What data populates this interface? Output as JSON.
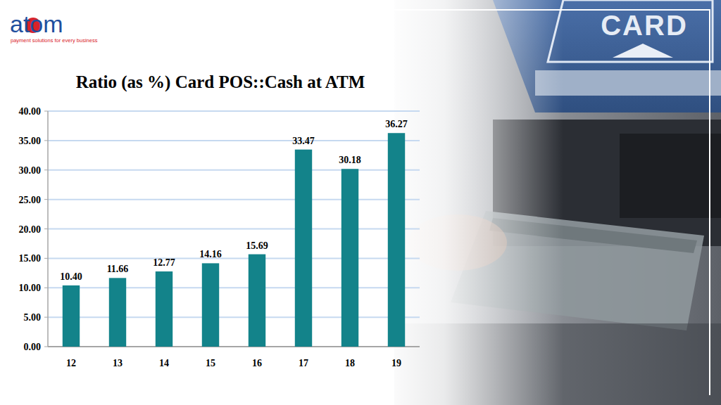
{
  "chart_data": {
    "type": "bar",
    "title": "Ratio (as %) Card POS::Cash at ATM",
    "annotations": [
      "atom",
      "payment solutions for every business",
      "CARD"
    ],
    "categories": [
      "12",
      "13",
      "14",
      "15",
      "16",
      "17",
      "18",
      "19"
    ],
    "values": [
      10.4,
      11.66,
      12.77,
      14.16,
      15.69,
      33.47,
      30.18,
      36.27
    ],
    "value_labels": [
      "10.40",
      "11.66",
      "12.77",
      "14.16",
      "15.69",
      "33.47",
      "30.18",
      "36.27"
    ],
    "color": "#13838a",
    "ylim": [
      0,
      40
    ],
    "yticks": [
      {
        "value": 0,
        "label": "0.00"
      },
      {
        "value": 5,
        "label": "5.00"
      },
      {
        "value": 10,
        "label": "10.00"
      },
      {
        "value": 15,
        "label": "15.00"
      },
      {
        "value": 20,
        "label": "20.00"
      },
      {
        "value": 25,
        "label": "25.00"
      },
      {
        "value": 30,
        "label": "30.00"
      },
      {
        "value": 35,
        "label": "35.00"
      },
      {
        "value": 40,
        "label": "40.00"
      }
    ],
    "grid": true,
    "data_labels": true
  }
}
